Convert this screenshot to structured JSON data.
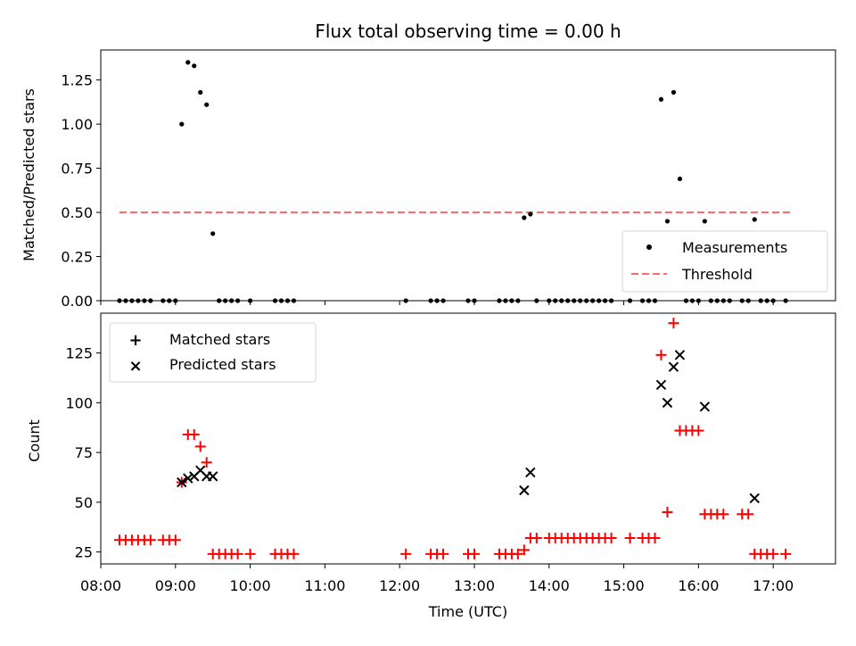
{
  "chart_data": [
    {
      "type": "scatter",
      "title": "Flux total observing time = 0.00 h",
      "xlabel": "",
      "ylabel": "Matched/Predicted stars",
      "xlim": [
        "08:00",
        "17:50"
      ],
      "ylim": [
        0,
        1.42
      ],
      "yticks": [
        "0.00",
        "0.25",
        "0.50",
        "0.75",
        "1.00",
        "1.25"
      ],
      "legend_position": "bottom-right",
      "threshold": {
        "name": "Threshold",
        "value": 0.5,
        "x_start": "08:15",
        "x_end": "17:15",
        "color": "#ff6b6b"
      },
      "series": [
        {
          "name": "Measurements",
          "color": "#000000",
          "points": [
            [
              "08:15",
              0
            ],
            [
              "08:20",
              0
            ],
            [
              "08:25",
              0
            ],
            [
              "08:30",
              0
            ],
            [
              "08:35",
              0
            ],
            [
              "08:40",
              0
            ],
            [
              "08:50",
              0
            ],
            [
              "08:55",
              0
            ],
            [
              "09:00",
              0
            ],
            [
              "09:05",
              1.0
            ],
            [
              "09:10",
              1.35
            ],
            [
              "09:15",
              1.33
            ],
            [
              "09:20",
              1.18
            ],
            [
              "09:25",
              1.11
            ],
            [
              "09:30",
              0.38
            ],
            [
              "09:35",
              0
            ],
            [
              "09:40",
              0
            ],
            [
              "09:45",
              0
            ],
            [
              "09:50",
              0
            ],
            [
              "10:00",
              0
            ],
            [
              "10:20",
              0
            ],
            [
              "10:25",
              0
            ],
            [
              "10:30",
              0
            ],
            [
              "10:35",
              0
            ],
            [
              "12:05",
              0
            ],
            [
              "12:25",
              0
            ],
            [
              "12:30",
              0
            ],
            [
              "12:35",
              0
            ],
            [
              "12:55",
              0
            ],
            [
              "13:00",
              0
            ],
            [
              "13:20",
              0
            ],
            [
              "13:25",
              0
            ],
            [
              "13:30",
              0
            ],
            [
              "13:35",
              0
            ],
            [
              "13:40",
              0.47
            ],
            [
              "13:45",
              0.49
            ],
            [
              "13:50",
              0
            ],
            [
              "14:00",
              0
            ],
            [
              "14:05",
              0
            ],
            [
              "14:10",
              0
            ],
            [
              "14:15",
              0
            ],
            [
              "14:20",
              0
            ],
            [
              "14:25",
              0
            ],
            [
              "14:30",
              0
            ],
            [
              "14:35",
              0
            ],
            [
              "14:40",
              0
            ],
            [
              "14:45",
              0
            ],
            [
              "14:50",
              0
            ],
            [
              "15:05",
              0
            ],
            [
              "15:15",
              0
            ],
            [
              "15:20",
              0
            ],
            [
              "15:25",
              0
            ],
            [
              "15:30",
              1.14
            ],
            [
              "15:35",
              0.45
            ],
            [
              "15:40",
              1.18
            ],
            [
              "15:45",
              0.69
            ],
            [
              "15:50",
              0
            ],
            [
              "15:55",
              0
            ],
            [
              "16:00",
              0
            ],
            [
              "16:05",
              0.45
            ],
            [
              "16:10",
              0
            ],
            [
              "16:15",
              0
            ],
            [
              "16:20",
              0
            ],
            [
              "16:25",
              0
            ],
            [
              "16:35",
              0
            ],
            [
              "16:40",
              0
            ],
            [
              "16:45",
              0.46
            ],
            [
              "16:50",
              0
            ],
            [
              "16:55",
              0
            ],
            [
              "17:00",
              0
            ],
            [
              "17:10",
              0
            ]
          ]
        }
      ]
    },
    {
      "type": "scatter",
      "title": "",
      "xlabel": "Time (UTC)",
      "ylabel": "Count",
      "xlim": [
        "08:00",
        "17:50"
      ],
      "ylim": [
        19,
        145
      ],
      "xticks": [
        "08:00",
        "09:00",
        "10:00",
        "11:00",
        "12:00",
        "13:00",
        "14:00",
        "15:00",
        "16:00",
        "17:00"
      ],
      "yticks": [
        "25",
        "50",
        "75",
        "100",
        "125"
      ],
      "legend_position": "top-left",
      "series": [
        {
          "name": "Matched stars",
          "marker": "plus",
          "color": "#ff0000",
          "points": [
            [
              "08:15",
              31
            ],
            [
              "08:20",
              31
            ],
            [
              "08:25",
              31
            ],
            [
              "08:30",
              31
            ],
            [
              "08:35",
              31
            ],
            [
              "08:40",
              31
            ],
            [
              "08:50",
              31
            ],
            [
              "08:55",
              31
            ],
            [
              "09:00",
              31
            ],
            [
              "09:05",
              60
            ],
            [
              "09:10",
              84
            ],
            [
              "09:15",
              84
            ],
            [
              "09:20",
              78
            ],
            [
              "09:25",
              70
            ],
            [
              "09:30",
              24
            ],
            [
              "09:35",
              24
            ],
            [
              "09:40",
              24
            ],
            [
              "09:45",
              24
            ],
            [
              "09:50",
              24
            ],
            [
              "10:00",
              24
            ],
            [
              "10:20",
              24
            ],
            [
              "10:25",
              24
            ],
            [
              "10:30",
              24
            ],
            [
              "10:35",
              24
            ],
            [
              "12:05",
              24
            ],
            [
              "12:25",
              24
            ],
            [
              "12:30",
              24
            ],
            [
              "12:35",
              24
            ],
            [
              "12:55",
              24
            ],
            [
              "13:00",
              24
            ],
            [
              "13:20",
              24
            ],
            [
              "13:25",
              24
            ],
            [
              "13:30",
              24
            ],
            [
              "13:35",
              24
            ],
            [
              "13:40",
              26
            ],
            [
              "13:45",
              32
            ],
            [
              "13:50",
              32
            ],
            [
              "14:00",
              32
            ],
            [
              "14:05",
              32
            ],
            [
              "14:10",
              32
            ],
            [
              "14:15",
              32
            ],
            [
              "14:20",
              32
            ],
            [
              "14:25",
              32
            ],
            [
              "14:30",
              32
            ],
            [
              "14:35",
              32
            ],
            [
              "14:40",
              32
            ],
            [
              "14:45",
              32
            ],
            [
              "14:50",
              32
            ],
            [
              "15:05",
              32
            ],
            [
              "15:15",
              32
            ],
            [
              "15:20",
              32
            ],
            [
              "15:25",
              32
            ],
            [
              "15:30",
              124
            ],
            [
              "15:35",
              45
            ],
            [
              "15:40",
              140
            ],
            [
              "15:45",
              86
            ],
            [
              "15:50",
              86
            ],
            [
              "15:55",
              86
            ],
            [
              "16:00",
              86
            ],
            [
              "16:05",
              44
            ],
            [
              "16:10",
              44
            ],
            [
              "16:15",
              44
            ],
            [
              "16:20",
              44
            ],
            [
              "16:35",
              44
            ],
            [
              "16:40",
              44
            ],
            [
              "16:45",
              24
            ],
            [
              "16:50",
              24
            ],
            [
              "16:55",
              24
            ],
            [
              "17:00",
              24
            ],
            [
              "17:10",
              24
            ]
          ]
        },
        {
          "name": "Predicted stars",
          "marker": "x",
          "color": "#000000",
          "points": [
            [
              "09:05",
              60
            ],
            [
              "09:10",
              62
            ],
            [
              "09:15",
              63
            ],
            [
              "09:20",
              66
            ],
            [
              "09:25",
              63
            ],
            [
              "09:30",
              63
            ],
            [
              "13:40",
              56
            ],
            [
              "13:45",
              65
            ],
            [
              "15:30",
              109
            ],
            [
              "15:35",
              100
            ],
            [
              "15:40",
              118
            ],
            [
              "15:45",
              124
            ],
            [
              "16:05",
              98
            ],
            [
              "16:45",
              52
            ]
          ]
        }
      ]
    }
  ]
}
